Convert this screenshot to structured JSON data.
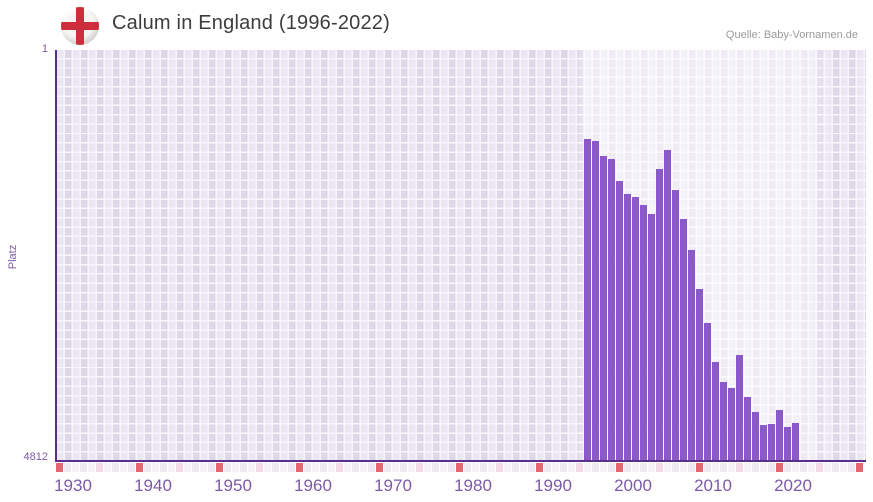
{
  "header": {
    "title": "Calum in England (1996-2022)",
    "source": "Quelle: Baby-Vornamen.de",
    "flag_icon": "england-flag-icon"
  },
  "chart_data": {
    "type": "bar",
    "title": "Calum in England (1996-2022)",
    "xlabel": "",
    "ylabel": "Platz",
    "y_axis": {
      "top_tick": "1",
      "bottom_tick": "4812",
      "min": 1,
      "max": 4812,
      "inverted": true,
      "note": "rank axis, 1 = best at top, bars grow upward toward better rank"
    },
    "x_axis": {
      "tick_labels": [
        "1930",
        "1940",
        "1950",
        "1960",
        "1970",
        "1980",
        "1990",
        "2000",
        "2010",
        "2020"
      ],
      "range_years": [
        1930,
        2030
      ],
      "decade_marks_every": 10,
      "half_decade_marks_every": 5
    },
    "grid": true,
    "legend": "none",
    "highlight_band_years": [
      1995,
      2024
    ],
    "series": [
      {
        "name": "Platz",
        "x": [
          1996,
          1997,
          1998,
          1999,
          2000,
          2001,
          2002,
          2003,
          2004,
          2005,
          2006,
          2007,
          2008,
          2009,
          2010,
          2011,
          2012,
          2013,
          2014,
          2015,
          2016,
          2017,
          2018,
          2019,
          2020,
          2021,
          2022
        ],
        "values": [
          1040,
          1064,
          1247,
          1280,
          1539,
          1686,
          1725,
          1815,
          1931,
          1394,
          1172,
          1644,
          1986,
          2344,
          2803,
          3200,
          3660,
          3893,
          3971,
          3578,
          4068,
          4243,
          4400,
          4392,
          4224,
          4430,
          4381
        ]
      }
    ],
    "colors": {
      "bar": "#8c5ac8",
      "axis_line": "#5b2d8e",
      "axis_text": "#7e59a6",
      "title_text": "#3d3d3d",
      "source_text": "#9b9b9b",
      "plot_cell": "#e2dcee",
      "grid_line": "#f8f6fb",
      "decade_cell": "#e26672",
      "half_decade_cell": "#f3d9e3",
      "strip_cell_a": "#f6f1f5",
      "strip_cell_b": "#eee8f1",
      "flag_cross": "#cd2d3c",
      "flag_bg": "#f6f5f2"
    }
  }
}
